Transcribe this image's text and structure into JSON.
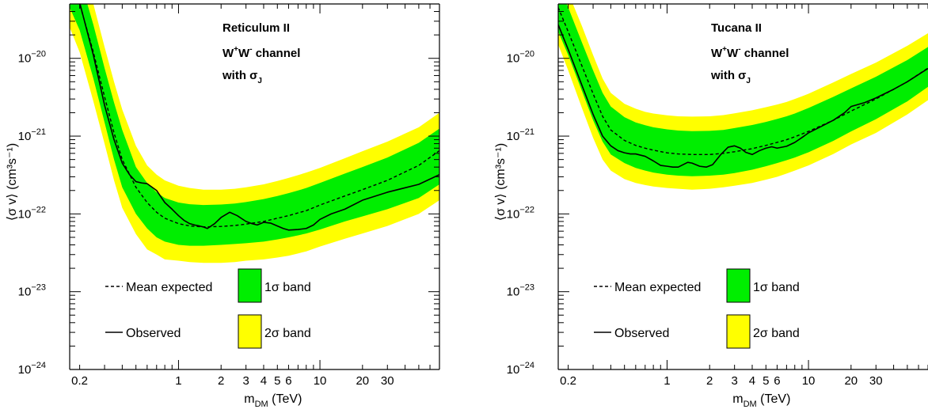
{
  "chart_data": [
    {
      "type": "line",
      "scale": {
        "x": "log",
        "y": "log"
      },
      "xlim": [
        0.17,
        70
      ],
      "ylim": [
        1e-24,
        5e-20
      ],
      "xlabel_main": "m",
      "xlabel_sub": "DM",
      "xlabel_unit": "(TeV)",
      "ylabel": "⟨σ v⟩ (cm³s⁻¹)",
      "x_ticks": [
        {
          "value": 0.2,
          "label": "0.2"
        },
        {
          "value": 1,
          "label": "1"
        },
        {
          "value": 2,
          "label": "2"
        },
        {
          "value": 3,
          "label": "3"
        },
        {
          "value": 4,
          "label": "4"
        },
        {
          "value": 5,
          "label": "5"
        },
        {
          "value": 6,
          "label": "6"
        },
        {
          "value": 10,
          "label": "10"
        },
        {
          "value": 20,
          "label": "20"
        },
        {
          "value": 30,
          "label": "30"
        }
      ],
      "y_ticks": [
        {
          "value": 1e-24,
          "base": "10",
          "exp": "−24"
        },
        {
          "value": 1e-23,
          "base": "10",
          "exp": "−23"
        },
        {
          "value": 1e-22,
          "base": "10",
          "exp": "−22"
        },
        {
          "value": 1e-21,
          "base": "10",
          "exp": "−21"
        },
        {
          "value": 1e-20,
          "base": "10",
          "exp": "−20"
        }
      ],
      "annotation": {
        "line1": "Reticulum II",
        "line2_main": "W",
        "line2_sup1": "+",
        "line2_mid": "W",
        "line2_sup2": "-",
        "line2_end": " channel",
        "line3_main": "with σ",
        "line3_sub": "J"
      },
      "legend": {
        "mean": "Mean expected",
        "observed": "Observed",
        "band1": "1σ band",
        "band2": "2σ band"
      },
      "colors": {
        "band1": "#00ee00",
        "band2": "#ffff00",
        "line": "#000000"
      },
      "x": [
        0.17,
        0.2,
        0.25,
        0.3,
        0.35,
        0.4,
        0.5,
        0.6,
        0.7,
        0.8,
        1,
        1.2,
        1.5,
        2,
        2.5,
        3,
        4,
        5,
        6,
        7,
        8,
        10,
        15,
        20,
        30,
        50,
        70
      ],
      "mean_expected": [
        1e-19,
        5e-20,
        1.2e-20,
        3.2e-21,
        1.1e-21,
        5e-22,
        2.2e-22,
        1.4e-22,
        1.05e-22,
        8.8e-23,
        7.5e-23,
        7e-23,
        6.8e-23,
        6.9e-23,
        7.1e-23,
        7.4e-23,
        8e-23,
        8.8e-23,
        9.5e-23,
        1.03e-22,
        1.1e-22,
        1.3e-22,
        1.7e-22,
        2.05e-22,
        2.7e-22,
        4.2e-22,
        6.5e-22
      ],
      "band1_lower": [
        4.5e-20,
        2.3e-20,
        5.5e-21,
        1.5e-21,
        5e-22,
        2.2e-22,
        1e-22,
        6.5e-23,
        5e-23,
        4.4e-23,
        4e-23,
        3.9e-23,
        3.9e-23,
        4e-23,
        4.1e-23,
        4.2e-23,
        4.4e-23,
        4.7e-23,
        5e-23,
        5.3e-23,
        5.6e-23,
        6.3e-23,
        8e-23,
        9.3e-23,
        1.15e-22,
        1.6e-22,
        2.4e-22
      ],
      "band1_upper": [
        2.2e-19,
        1.1e-19,
        2.7e-20,
        7.5e-21,
        2.7e-21,
        1.2e-21,
        4e-22,
        2.5e-22,
        1.9e-22,
        1.6e-22,
        1.4e-22,
        1.33e-22,
        1.3e-22,
        1.32e-22,
        1.36e-22,
        1.42e-22,
        1.55e-22,
        1.7e-22,
        1.85e-22,
        2e-22,
        2.15e-22,
        2.5e-22,
        3.3e-22,
        4e-22,
        5.3e-22,
        8.2e-22,
        1.25e-21
      ],
      "band2_lower": [
        2.5e-20,
        1.2e-20,
        2.8e-21,
        8e-22,
        2.7e-22,
        1.2e-22,
        5.5e-23,
        3.5e-23,
        3e-23,
        2.6e-23,
        2.5e-23,
        2.4e-23,
        2.35e-23,
        2.35e-23,
        2.4e-23,
        2.5e-23,
        2.6e-23,
        2.75e-23,
        2.9e-23,
        3.1e-23,
        3.3e-23,
        3.8e-23,
        4.8e-23,
        5.6e-23,
        7e-23,
        1e-22,
        1.5e-22
      ],
      "band2_upper": [
        4e-19,
        2e-19,
        5e-20,
        1.4e-20,
        5e-21,
        2.2e-21,
        7.5e-22,
        4.2e-22,
        3.2e-22,
        2.7e-22,
        2.3e-22,
        2.15e-22,
        2.05e-22,
        2.05e-22,
        2.1e-22,
        2.2e-22,
        2.4e-22,
        2.65e-22,
        2.9e-22,
        3.15e-22,
        3.4e-22,
        3.9e-22,
        5.2e-22,
        6.4e-22,
        8.5e-22,
        1.3e-21,
        2e-21
      ],
      "observed_x": [
        0.17,
        0.2,
        0.25,
        0.3,
        0.35,
        0.4,
        0.45,
        0.5,
        0.55,
        0.6,
        0.7,
        0.8,
        0.9,
        1,
        1.1,
        1.2,
        1.3,
        1.4,
        1.5,
        1.6,
        1.8,
        2,
        2.3,
        2.6,
        3,
        3.3,
        3.6,
        4,
        4.5,
        5,
        5.5,
        6,
        7,
        8,
        9,
        10,
        12,
        15,
        20,
        30,
        50,
        70
      ],
      "observed": [
        1e-19,
        5.2e-20,
        1.1e-20,
        2.5e-21,
        9e-22,
        4.5e-22,
        3.2e-22,
        2.6e-22,
        2.5e-22,
        2.45e-22,
        2e-22,
        1.4e-22,
        1.15e-22,
        9.5e-23,
        8.2e-23,
        7.5e-23,
        7.2e-23,
        7e-23,
        6.8e-23,
        6.5e-23,
        7.5e-23,
        9e-23,
        1.05e-22,
        9.5e-23,
        8e-23,
        7.5e-23,
        7.2e-23,
        7.8e-23,
        7.6e-23,
        7e-23,
        6.5e-23,
        6.2e-23,
        6.3e-23,
        6.5e-23,
        7.2e-23,
        8.5e-23,
        1e-22,
        1.15e-22,
        1.5e-22,
        1.9e-22,
        2.4e-22,
        3.2e-22
      ]
    },
    {
      "type": "line",
      "scale": {
        "x": "log",
        "y": "log"
      },
      "xlim": [
        0.17,
        70
      ],
      "ylim": [
        1e-24,
        5e-20
      ],
      "xlabel_main": "m",
      "xlabel_sub": "DM",
      "xlabel_unit": "(TeV)",
      "ylabel": "⟨σ v⟩ (cm³s⁻¹)",
      "x_ticks": [
        {
          "value": 0.2,
          "label": "0.2"
        },
        {
          "value": 1,
          "label": "1"
        },
        {
          "value": 2,
          "label": "2"
        },
        {
          "value": 3,
          "label": "3"
        },
        {
          "value": 4,
          "label": "4"
        },
        {
          "value": 5,
          "label": "5"
        },
        {
          "value": 6,
          "label": "6"
        },
        {
          "value": 10,
          "label": "10"
        },
        {
          "value": 20,
          "label": "20"
        },
        {
          "value": 30,
          "label": "30"
        }
      ],
      "y_ticks": [
        {
          "value": 1e-24,
          "base": "10",
          "exp": "−24"
        },
        {
          "value": 1e-23,
          "base": "10",
          "exp": "−23"
        },
        {
          "value": 1e-22,
          "base": "10",
          "exp": "−22"
        },
        {
          "value": 1e-21,
          "base": "10",
          "exp": "−21"
        },
        {
          "value": 1e-20,
          "base": "10",
          "exp": "−20"
        }
      ],
      "annotation": {
        "line1": "Tucana II",
        "line2_main": "W",
        "line2_sup1": "+",
        "line2_mid": "W",
        "line2_sup2": "-",
        "line2_end": " channel",
        "line3_main": "with σ",
        "line3_sub": "J"
      },
      "legend": {
        "mean": "Mean expected",
        "observed": "Observed",
        "band1": "1σ band",
        "band2": "2σ band"
      },
      "colors": {
        "band1": "#00ee00",
        "band2": "#ffff00",
        "line": "#000000"
      },
      "x": [
        0.17,
        0.2,
        0.25,
        0.3,
        0.35,
        0.4,
        0.5,
        0.6,
        0.7,
        0.8,
        1,
        1.2,
        1.5,
        2,
        2.5,
        3,
        4,
        5,
        6,
        7,
        8,
        10,
        15,
        20,
        30,
        50,
        70
      ],
      "mean_expected": [
        4.5e-20,
        2.2e-20,
        8e-21,
        3.5e-21,
        1.8e-21,
        1.2e-21,
        8.8e-22,
        7.6e-22,
        7e-22,
        6.6e-22,
        6.1e-22,
        5.9e-22,
        5.8e-22,
        5.8e-22,
        6e-22,
        6.3e-22,
        6.9e-22,
        7.6e-22,
        8.3e-22,
        9e-22,
        9.8e-22,
        1.15e-21,
        1.6e-21,
        2.1e-21,
        3e-21,
        5e-21,
        7.5e-21
      ],
      "band1_lower": [
        2.2e-20,
        1.1e-20,
        3.8e-21,
        1.6e-21,
        8.5e-22,
        5.8e-22,
        4.5e-22,
        3.9e-22,
        3.6e-22,
        3.4e-22,
        3.2e-22,
        3.1e-22,
        3.05e-22,
        3.1e-22,
        3.2e-22,
        3.35e-22,
        3.7e-22,
        4.1e-22,
        4.5e-22,
        4.9e-22,
        5.3e-22,
        6.2e-22,
        8.7e-22,
        1.15e-21,
        1.65e-21,
        2.8e-21,
        4.3e-21
      ],
      "band1_upper": [
        9e-20,
        4.5e-20,
        1.6e-20,
        7e-21,
        3.6e-21,
        2.4e-21,
        1.75e-21,
        1.5e-21,
        1.38e-21,
        1.3e-21,
        1.22e-21,
        1.18e-21,
        1.16e-21,
        1.17e-21,
        1.2e-21,
        1.27e-21,
        1.39e-21,
        1.52e-21,
        1.66e-21,
        1.8e-21,
        1.95e-21,
        2.3e-21,
        3.2e-21,
        4.1e-21,
        5.8e-21,
        9.5e-21,
        1.4e-20
      ],
      "band2_lower": [
        1.5e-20,
        7e-21,
        2.3e-21,
        9.5e-22,
        5e-22,
        3.6e-22,
        2.8e-22,
        2.5e-22,
        2.35e-22,
        2.25e-22,
        2.15e-22,
        2.1e-22,
        2.05e-22,
        2.1e-22,
        2.2e-22,
        2.3e-22,
        2.5e-22,
        2.75e-22,
        3e-22,
        3.3e-22,
        3.6e-22,
        4.2e-22,
        5.9e-22,
        7.8e-22,
        1.1e-21,
        1.9e-21,
        2.9e-21
      ],
      "band2_upper": [
        1.5e-19,
        7e-20,
        2.6e-20,
        1.1e-20,
        5.5e-21,
        3.6e-21,
        2.6e-21,
        2.25e-21,
        2.05e-21,
        1.95e-21,
        1.85e-21,
        1.8e-21,
        1.78e-21,
        1.8e-21,
        1.86e-21,
        1.96e-21,
        2.15e-21,
        2.35e-21,
        2.55e-21,
        2.75e-21,
        3e-21,
        3.5e-21,
        4.9e-21,
        6.3e-21,
        8.8e-21,
        1.45e-20,
        2.1e-20
      ],
      "observed_x": [
        0.17,
        0.2,
        0.25,
        0.3,
        0.35,
        0.4,
        0.45,
        0.5,
        0.55,
        0.6,
        0.7,
        0.8,
        0.9,
        1,
        1.1,
        1.2,
        1.3,
        1.4,
        1.5,
        1.7,
        1.9,
        2.1,
        2.4,
        2.7,
        3,
        3.3,
        3.6,
        4,
        4.5,
        5,
        5.5,
        6,
        7,
        8,
        9,
        10,
        12,
        15,
        18,
        20,
        25,
        30,
        40,
        50,
        70
      ],
      "observed": [
        2.7e-20,
        1.3e-20,
        4.5e-21,
        1.9e-21,
        1e-21,
        7.5e-22,
        6.5e-22,
        6.1e-22,
        5.9e-22,
        5.9e-22,
        5.5e-22,
        4.8e-22,
        4.2e-22,
        4.1e-22,
        4e-22,
        4e-22,
        4.3e-22,
        4.6e-22,
        4.5e-22,
        4.1e-22,
        4e-22,
        4.3e-22,
        5.8e-22,
        7.2e-22,
        7.5e-22,
        7e-22,
        6.2e-22,
        5.8e-22,
        6.5e-22,
        7e-22,
        7.3e-22,
        7e-22,
        7.4e-22,
        8.3e-22,
        9.6e-22,
        1.1e-21,
        1.3e-21,
        1.6e-21,
        2e-21,
        2.4e-21,
        2.7e-21,
        3.1e-21,
        4e-21,
        5e-21,
        7.4e-21
      ]
    }
  ]
}
